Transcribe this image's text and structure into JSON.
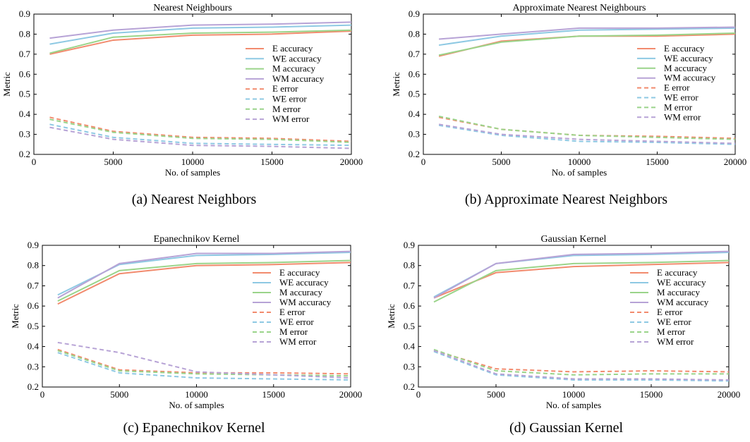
{
  "colors": {
    "E": "#f28b6e",
    "WE": "#8ec9e3",
    "M": "#9ad48a",
    "WM": "#b7a3d6"
  },
  "captions": [
    "(a) Nearest Neighbors",
    "(b) Approximate Nearest Neighbors",
    "(c) Epanechnikov Kernel",
    "(d) Gaussian Kernel"
  ],
  "chart_data": [
    {
      "type": "line",
      "title": "Nearest Neighbours",
      "xlabel": "No. of samples",
      "ylabel": "Metric",
      "xlim": [
        0,
        20000
      ],
      "ylim": [
        0.2,
        0.9
      ],
      "xticks": [
        0,
        5000,
        10000,
        15000,
        20000
      ],
      "yticks": [
        0.2,
        0.3,
        0.4,
        0.5,
        0.6,
        0.7,
        0.8,
        0.9
      ],
      "grid": false,
      "legend_position": "center-right",
      "x": [
        1000,
        5000,
        10000,
        15000,
        20000
      ],
      "series": [
        {
          "name": "E accuracy",
          "key": "E",
          "dashed": false,
          "values": [
            0.7,
            0.77,
            0.795,
            0.8,
            0.815
          ]
        },
        {
          "name": "WE accuracy",
          "key": "WE",
          "dashed": false,
          "values": [
            0.75,
            0.805,
            0.83,
            0.835,
            0.845
          ]
        },
        {
          "name": "M accuracy",
          "key": "M",
          "dashed": false,
          "values": [
            0.705,
            0.785,
            0.805,
            0.81,
            0.82
          ]
        },
        {
          "name": "WM accuracy",
          "key": "WM",
          "dashed": false,
          "values": [
            0.78,
            0.82,
            0.845,
            0.85,
            0.86
          ]
        },
        {
          "name": "E error",
          "key": "E",
          "dashed": true,
          "values": [
            0.385,
            0.315,
            0.285,
            0.28,
            0.265
          ]
        },
        {
          "name": "WE error",
          "key": "WE",
          "dashed": true,
          "values": [
            0.35,
            0.285,
            0.255,
            0.25,
            0.245
          ]
        },
        {
          "name": "M error",
          "key": "M",
          "dashed": true,
          "values": [
            0.375,
            0.31,
            0.28,
            0.275,
            0.26
          ]
        },
        {
          "name": "WM error",
          "key": "WM",
          "dashed": true,
          "values": [
            0.335,
            0.275,
            0.245,
            0.24,
            0.23
          ]
        }
      ]
    },
    {
      "type": "line",
      "title": "Approximate Nearest Neighbours",
      "xlabel": "No. of samples",
      "ylabel": "Metric",
      "xlim": [
        0,
        20000
      ],
      "ylim": [
        0.2,
        0.9
      ],
      "xticks": [
        0,
        5000,
        10000,
        15000,
        20000
      ],
      "yticks": [
        0.2,
        0.3,
        0.4,
        0.5,
        0.6,
        0.7,
        0.8,
        0.9
      ],
      "grid": false,
      "legend_position": "center-right",
      "x": [
        1000,
        5000,
        10000,
        15000,
        20000
      ],
      "series": [
        {
          "name": "E accuracy",
          "key": "E",
          "dashed": false,
          "values": [
            0.69,
            0.765,
            0.79,
            0.79,
            0.8
          ]
        },
        {
          "name": "WE accuracy",
          "key": "WE",
          "dashed": false,
          "values": [
            0.745,
            0.79,
            0.82,
            0.825,
            0.83
          ]
        },
        {
          "name": "M accuracy",
          "key": "M",
          "dashed": false,
          "values": [
            0.695,
            0.76,
            0.79,
            0.795,
            0.805
          ]
        },
        {
          "name": "WM accuracy",
          "key": "WM",
          "dashed": false,
          "values": [
            0.775,
            0.8,
            0.83,
            0.83,
            0.835
          ]
        },
        {
          "name": "E error",
          "key": "E",
          "dashed": true,
          "values": [
            0.385,
            0.325,
            0.295,
            0.29,
            0.28
          ]
        },
        {
          "name": "WE error",
          "key": "WE",
          "dashed": true,
          "values": [
            0.345,
            0.295,
            0.265,
            0.26,
            0.25
          ]
        },
        {
          "name": "M error",
          "key": "M",
          "dashed": true,
          "values": [
            0.39,
            0.325,
            0.295,
            0.285,
            0.275
          ]
        },
        {
          "name": "WM error",
          "key": "WM",
          "dashed": true,
          "values": [
            0.35,
            0.3,
            0.275,
            0.265,
            0.255
          ]
        }
      ]
    },
    {
      "type": "line",
      "title": "Epanechnikov Kernel",
      "xlabel": "No. of samples",
      "ylabel": "Metric",
      "xlim": [
        0,
        20000
      ],
      "ylim": [
        0.2,
        0.9
      ],
      "xticks": [
        0,
        5000,
        10000,
        15000,
        20000
      ],
      "yticks": [
        0.2,
        0.3,
        0.4,
        0.5,
        0.6,
        0.7,
        0.8,
        0.9
      ],
      "grid": false,
      "legend_position": "center-right",
      "x": [
        1000,
        5000,
        10000,
        15000,
        20000
      ],
      "series": [
        {
          "name": "E accuracy",
          "key": "E",
          "dashed": false,
          "values": [
            0.61,
            0.76,
            0.8,
            0.805,
            0.815
          ]
        },
        {
          "name": "WE accuracy",
          "key": "WE",
          "dashed": false,
          "values": [
            0.655,
            0.805,
            0.85,
            0.855,
            0.865
          ]
        },
        {
          "name": "M accuracy",
          "key": "M",
          "dashed": false,
          "values": [
            0.625,
            0.775,
            0.81,
            0.815,
            0.825
          ]
        },
        {
          "name": "WM accuracy",
          "key": "WM",
          "dashed": false,
          "values": [
            0.64,
            0.81,
            0.86,
            0.86,
            0.87
          ]
        },
        {
          "name": "E error",
          "key": "E",
          "dashed": true,
          "values": [
            0.385,
            0.285,
            0.27,
            0.27,
            0.265
          ]
        },
        {
          "name": "WE error",
          "key": "WE",
          "dashed": true,
          "values": [
            0.37,
            0.27,
            0.245,
            0.24,
            0.235
          ]
        },
        {
          "name": "M error",
          "key": "M",
          "dashed": true,
          "values": [
            0.38,
            0.28,
            0.265,
            0.26,
            0.255
          ]
        },
        {
          "name": "WM error",
          "key": "WM",
          "dashed": true,
          "values": [
            0.42,
            0.37,
            0.275,
            0.26,
            0.245
          ]
        }
      ]
    },
    {
      "type": "line",
      "title": "Gaussian Kernel",
      "xlabel": "No. of samples",
      "ylabel": "Metric",
      "xlim": [
        0,
        20000
      ],
      "ylim": [
        0.2,
        0.9
      ],
      "xticks": [
        0,
        5000,
        10000,
        15000,
        20000
      ],
      "yticks": [
        0.2,
        0.3,
        0.4,
        0.5,
        0.6,
        0.7,
        0.8,
        0.9
      ],
      "grid": false,
      "legend_position": "center-right",
      "x": [
        1000,
        5000,
        10000,
        15000,
        20000
      ],
      "series": [
        {
          "name": "E accuracy",
          "key": "E",
          "dashed": false,
          "values": [
            0.64,
            0.765,
            0.795,
            0.805,
            0.815
          ]
        },
        {
          "name": "WE accuracy",
          "key": "WE",
          "dashed": false,
          "values": [
            0.645,
            0.81,
            0.85,
            0.855,
            0.865
          ]
        },
        {
          "name": "M accuracy",
          "key": "M",
          "dashed": false,
          "values": [
            0.62,
            0.775,
            0.81,
            0.815,
            0.825
          ]
        },
        {
          "name": "WM accuracy",
          "key": "WM",
          "dashed": false,
          "values": [
            0.64,
            0.81,
            0.855,
            0.86,
            0.87
          ]
        },
        {
          "name": "E error",
          "key": "E",
          "dashed": true,
          "values": [
            0.38,
            0.29,
            0.275,
            0.28,
            0.275
          ]
        },
        {
          "name": "WE error",
          "key": "WE",
          "dashed": true,
          "values": [
            0.375,
            0.26,
            0.235,
            0.235,
            0.23
          ]
        },
        {
          "name": "M error",
          "key": "M",
          "dashed": true,
          "values": [
            0.385,
            0.28,
            0.26,
            0.265,
            0.265
          ]
        },
        {
          "name": "WM error",
          "key": "WM",
          "dashed": true,
          "values": [
            0.38,
            0.265,
            0.24,
            0.24,
            0.235
          ]
        }
      ]
    }
  ]
}
